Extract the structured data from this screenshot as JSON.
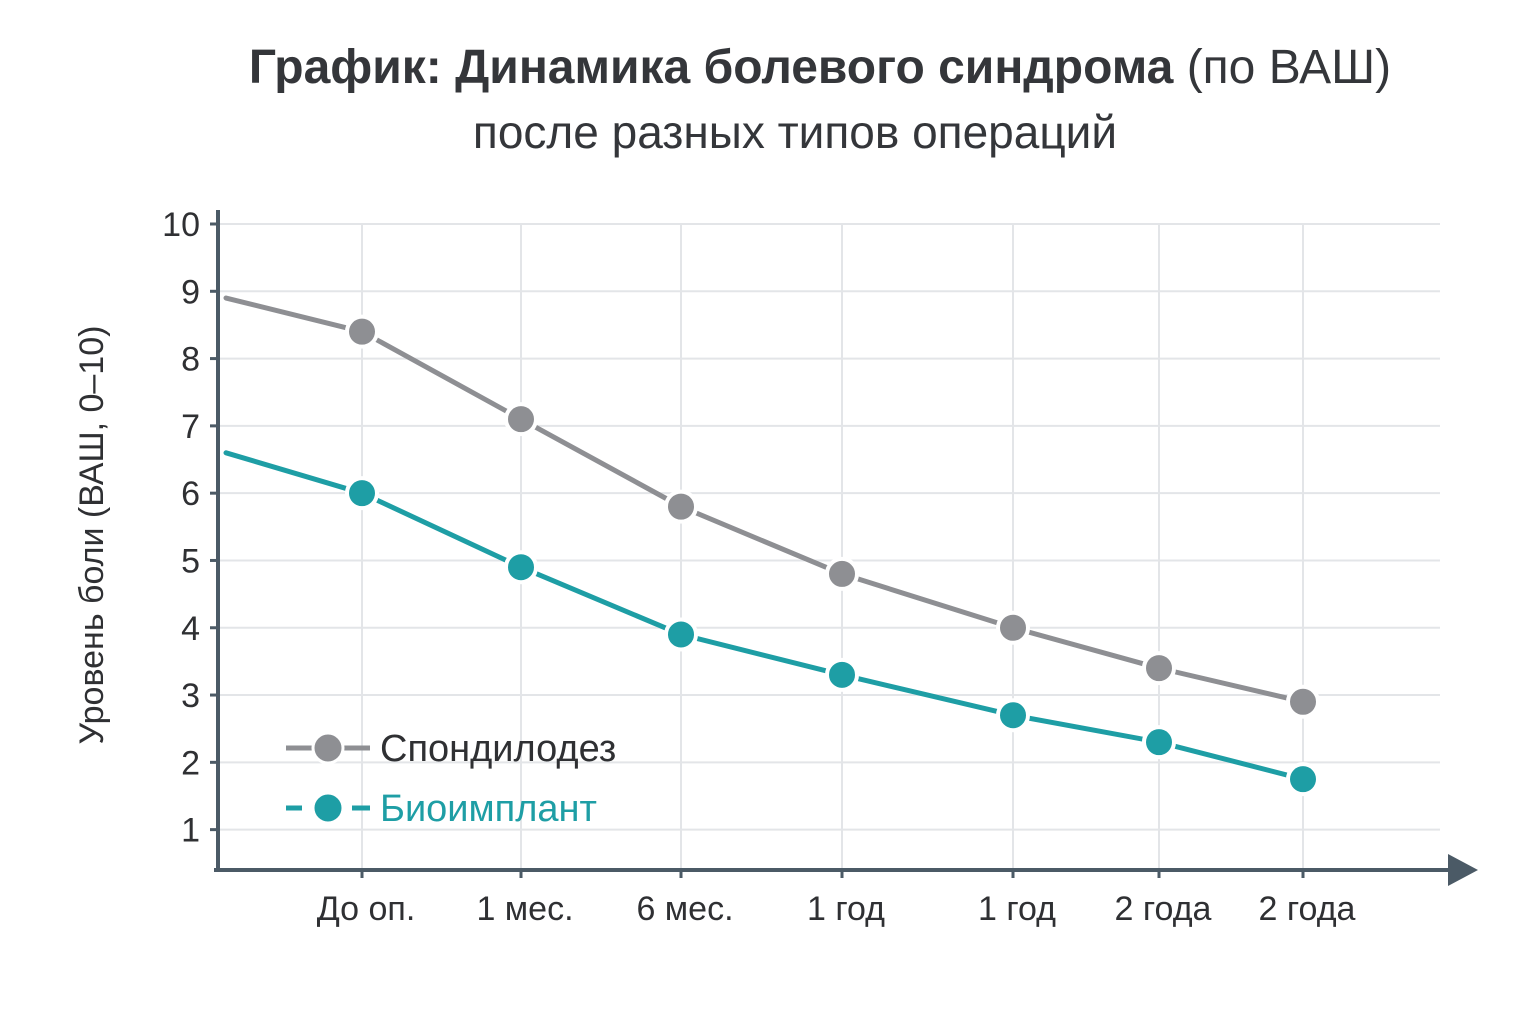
{
  "title": {
    "bold": "График: Динамика болевого синдрома",
    "normal": " (по ВАШ)",
    "line2": "после разных типов операций"
  },
  "colors": {
    "fusion": "#8e8f93",
    "bioimplant": "#1e9ea5",
    "grid": "#e3e5e8",
    "axis": "#4b5a66"
  },
  "chart_data": {
    "type": "line",
    "title": "График: Динамика болевого синдрома (по ВАШ) после разных типов операций",
    "xlabel": "",
    "ylabel": "Уровень боли (ВАШ, 0–10)",
    "ylim": [
      0.4,
      10
    ],
    "yticks": [
      "10",
      "9",
      "8",
      "7",
      "6",
      "5",
      "4",
      "3",
      "2",
      "1"
    ],
    "categories": [
      "До оп.",
      "1 мес.",
      "6 мес.",
      "1 год",
      "1 год",
      "2 года",
      "2 года"
    ],
    "series": [
      {
        "name": "Спондилодез",
        "values": [
          8.4,
          7.1,
          5.8,
          4.8,
          4.0,
          3.4,
          2.9
        ],
        "start_value": 8.9
      },
      {
        "name": "Биоимплант",
        "values": [
          6.0,
          4.9,
          3.9,
          3.3,
          2.7,
          2.3,
          1.75
        ],
        "start_value": 6.6
      }
    ],
    "grid": true,
    "legend_position": "bottom-left"
  }
}
